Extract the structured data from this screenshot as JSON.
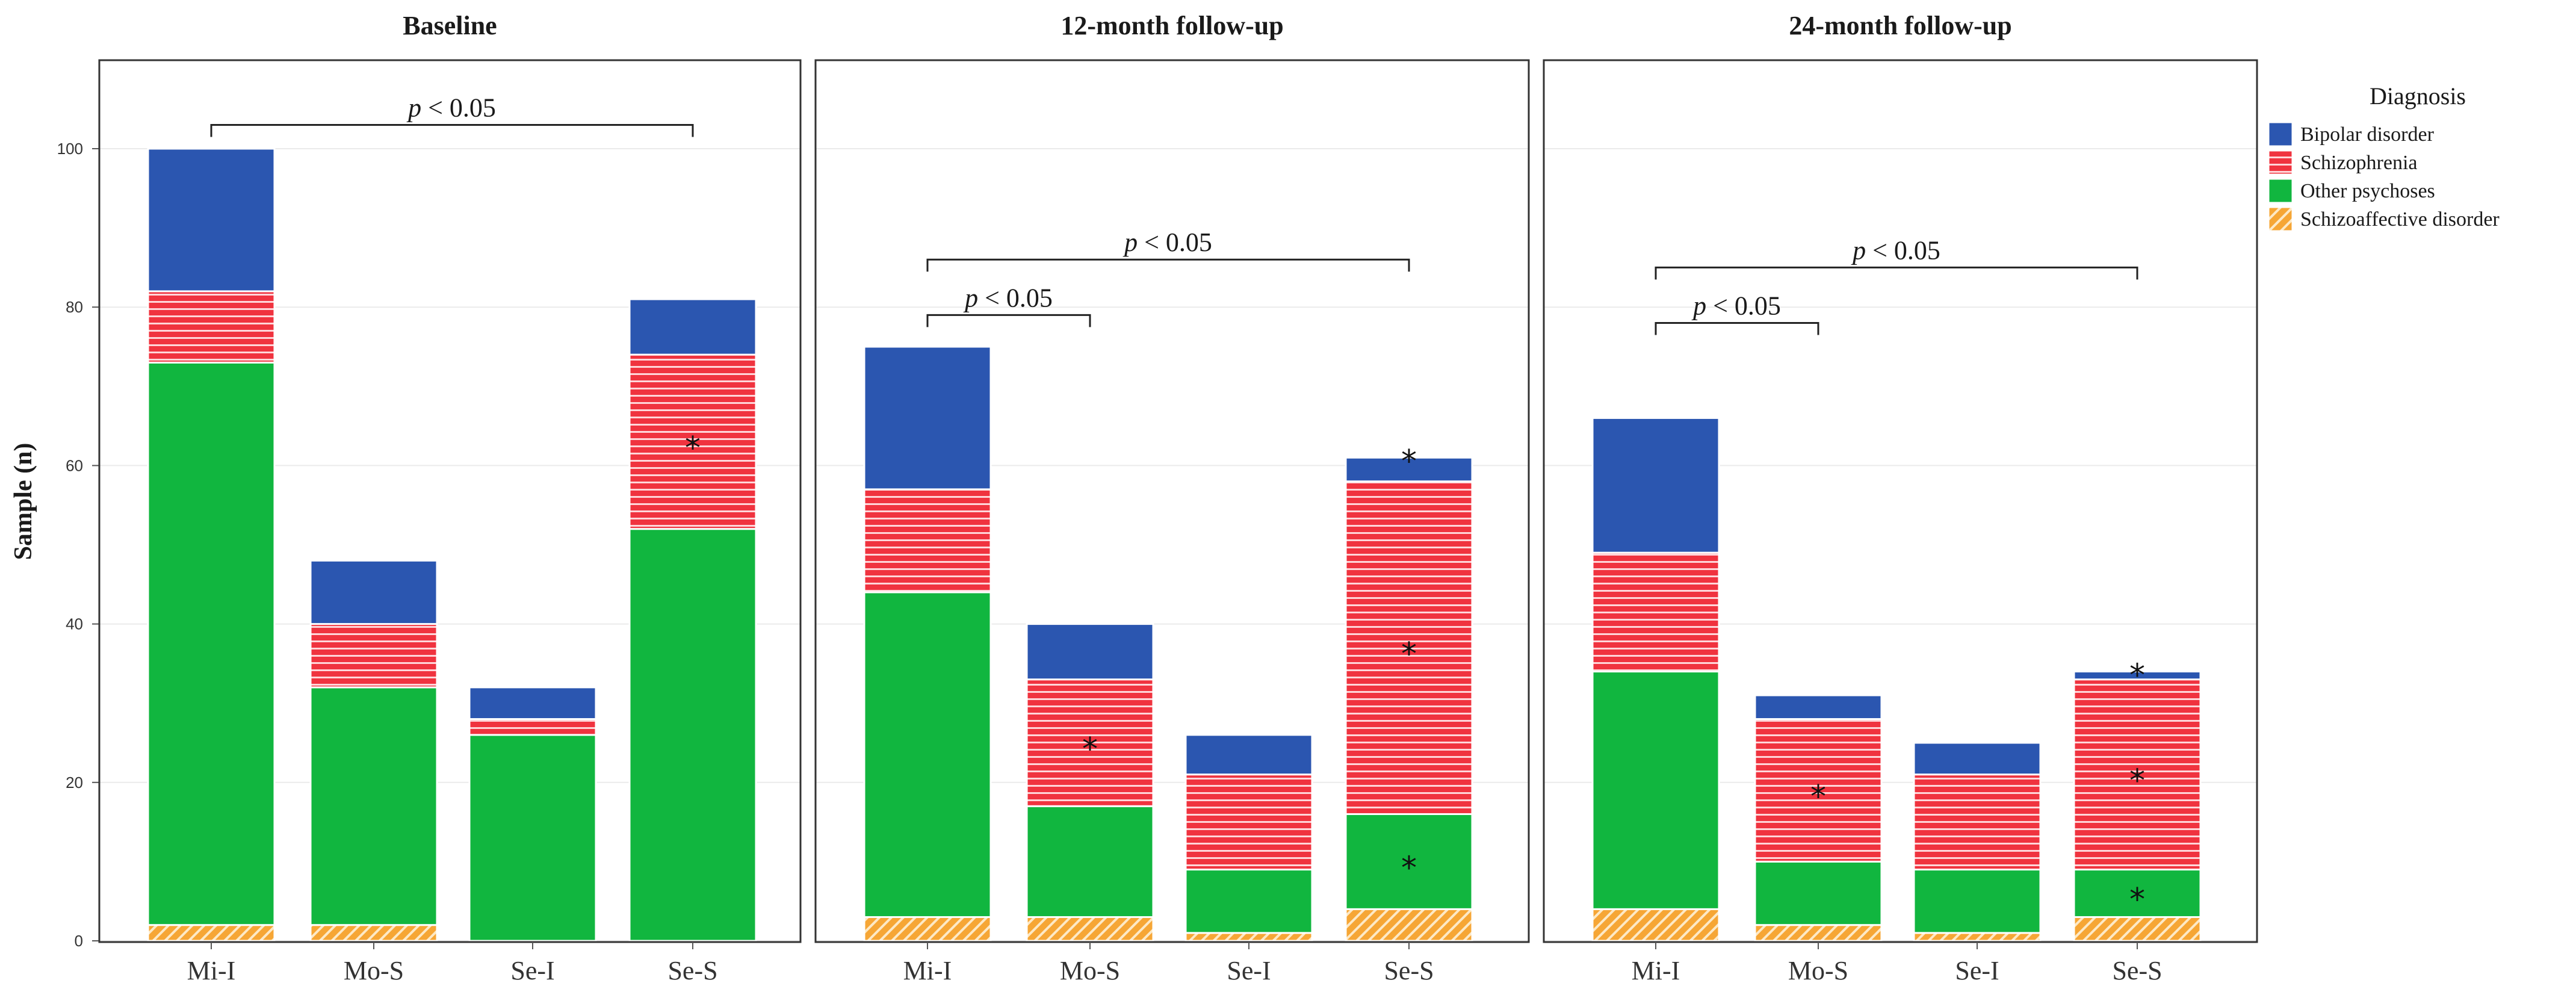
{
  "chart_data": {
    "type": "bar",
    "stacked": true,
    "ylabel": "Sample (n)",
    "ylim": [
      0,
      112
    ],
    "yticks": [
      0,
      20,
      40,
      60,
      80,
      100
    ],
    "categories": [
      "Mi-I",
      "Mo-S",
      "Se-I",
      "Se-S"
    ],
    "legend": {
      "title": "Diagnosis",
      "placement": "right",
      "entries": [
        "Bipolar disorder",
        "Schizophrenia",
        "Other psychoses",
        "Schizoaffective disorder"
      ]
    },
    "colors": {
      "Bipolar disorder": "#2b56b0",
      "Schizophrenia": "#f0333f",
      "Other psychoses": "#11b63f",
      "Schizoaffective disorder": "#f6a635"
    },
    "panels": [
      {
        "title": "Baseline",
        "series": [
          {
            "name": "Schizoaffective disorder",
            "values": [
              2,
              2,
              0,
              0
            ]
          },
          {
            "name": "Other psychoses",
            "values": [
              71,
              30,
              26,
              52
            ]
          },
          {
            "name": "Schizophrenia",
            "values": [
              9,
              8,
              2,
              22
            ]
          },
          {
            "name": "Bipolar disorder",
            "values": [
              18,
              8,
              4,
              7
            ]
          }
        ],
        "stars": [
          {
            "category": "Se-S",
            "series": "Schizophrenia"
          }
        ],
        "significance": [
          {
            "from": "Mi-I",
            "to": "Se-S",
            "at": 103,
            "label": "p",
            "text": " < 0.05"
          }
        ]
      },
      {
        "title": "12-month follow-up",
        "series": [
          {
            "name": "Schizoaffective disorder",
            "values": [
              3,
              3,
              1,
              4
            ]
          },
          {
            "name": "Other psychoses",
            "values": [
              41,
              14,
              8,
              12
            ]
          },
          {
            "name": "Schizophrenia",
            "values": [
              13,
              16,
              12,
              42
            ]
          },
          {
            "name": "Bipolar disorder",
            "values": [
              18,
              7,
              5,
              3
            ]
          }
        ],
        "stars": [
          {
            "category": "Mo-S",
            "series": "Schizophrenia"
          },
          {
            "category": "Se-S",
            "series": "Other psychoses"
          },
          {
            "category": "Se-S",
            "series": "Schizophrenia"
          },
          {
            "category": "Se-S",
            "series": "Bipolar disorder"
          }
        ],
        "significance": [
          {
            "from": "Mi-I",
            "to": "Se-S",
            "at": 86,
            "label": "p",
            "text": " < 0.05"
          },
          {
            "from": "Mi-I",
            "to": "Mo-S",
            "at": 79,
            "label": "p",
            "text": " < 0.05"
          }
        ]
      },
      {
        "title": "24-month follow-up",
        "series": [
          {
            "name": "Schizoaffective disorder",
            "values": [
              4,
              2,
              1,
              3
            ]
          },
          {
            "name": "Other psychoses",
            "values": [
              30,
              8,
              8,
              6
            ]
          },
          {
            "name": "Schizophrenia",
            "values": [
              15,
              18,
              12,
              24
            ]
          },
          {
            "name": "Bipolar disorder",
            "values": [
              17,
              3,
              4,
              1
            ]
          }
        ],
        "stars": [
          {
            "category": "Mo-S",
            "series": "Schizophrenia"
          },
          {
            "category": "Se-S",
            "series": "Other psychoses"
          },
          {
            "category": "Se-S",
            "series": "Schizophrenia"
          },
          {
            "category": "Se-S",
            "series": "Bipolar disorder"
          }
        ],
        "significance": [
          {
            "from": "Mi-I",
            "to": "Se-S",
            "at": 85,
            "label": "p",
            "text": " < 0.05"
          },
          {
            "from": "Mi-I",
            "to": "Mo-S",
            "at": 78,
            "label": "p",
            "text": " < 0.05"
          }
        ]
      }
    ]
  }
}
